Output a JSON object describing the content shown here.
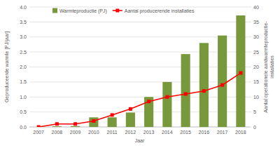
{
  "chart_data": {
    "type": "bar",
    "categories": [
      "2007",
      "2008",
      "2009",
      "2010",
      "2011",
      "2012",
      "2013",
      "2014",
      "2015",
      "2016",
      "2017",
      "2018"
    ],
    "x_label": "Jaar",
    "y_label": "Geproduceerde warmte [PJ/jaar]",
    "y2_label": "Aantal operationele aardwarmteproductie-installaties",
    "series": [
      {
        "name": "Warmteproductie (PJ)",
        "type": "bar",
        "color": "#77993b",
        "values": [
          0,
          0.02,
          0.03,
          0.32,
          0.32,
          0.48,
          1.0,
          1.5,
          2.43,
          2.8,
          3.05,
          3.72
        ]
      },
      {
        "name": "Aantal producerende installaties",
        "type": "line",
        "color": "#ff0000",
        "marker": "square",
        "axis": "y2",
        "values": [
          0,
          1,
          1,
          2,
          4,
          6,
          8.5,
          10,
          11,
          12,
          14,
          18
        ]
      }
    ],
    "ylim": [
      0,
      4
    ],
    "yticks": [
      {
        "value": 0,
        "label": "0.0"
      },
      {
        "value": 0.5,
        "label": "0.5"
      },
      {
        "value": 1,
        "label": "1.0"
      },
      {
        "value": 1.5,
        "label": "1.5"
      },
      {
        "value": 2,
        "label": "2.0"
      },
      {
        "value": 2.5,
        "label": "2.5"
      },
      {
        "value": 3,
        "label": "3.0"
      },
      {
        "value": 3.5,
        "label": "3.5"
      },
      {
        "value": 4,
        "label": "4.0"
      }
    ],
    "y2lim": [
      0,
      40
    ],
    "y2ticks": [
      0,
      5,
      10,
      15,
      20,
      25,
      30,
      35,
      40
    ],
    "grid": true,
    "legend": "top-left"
  }
}
